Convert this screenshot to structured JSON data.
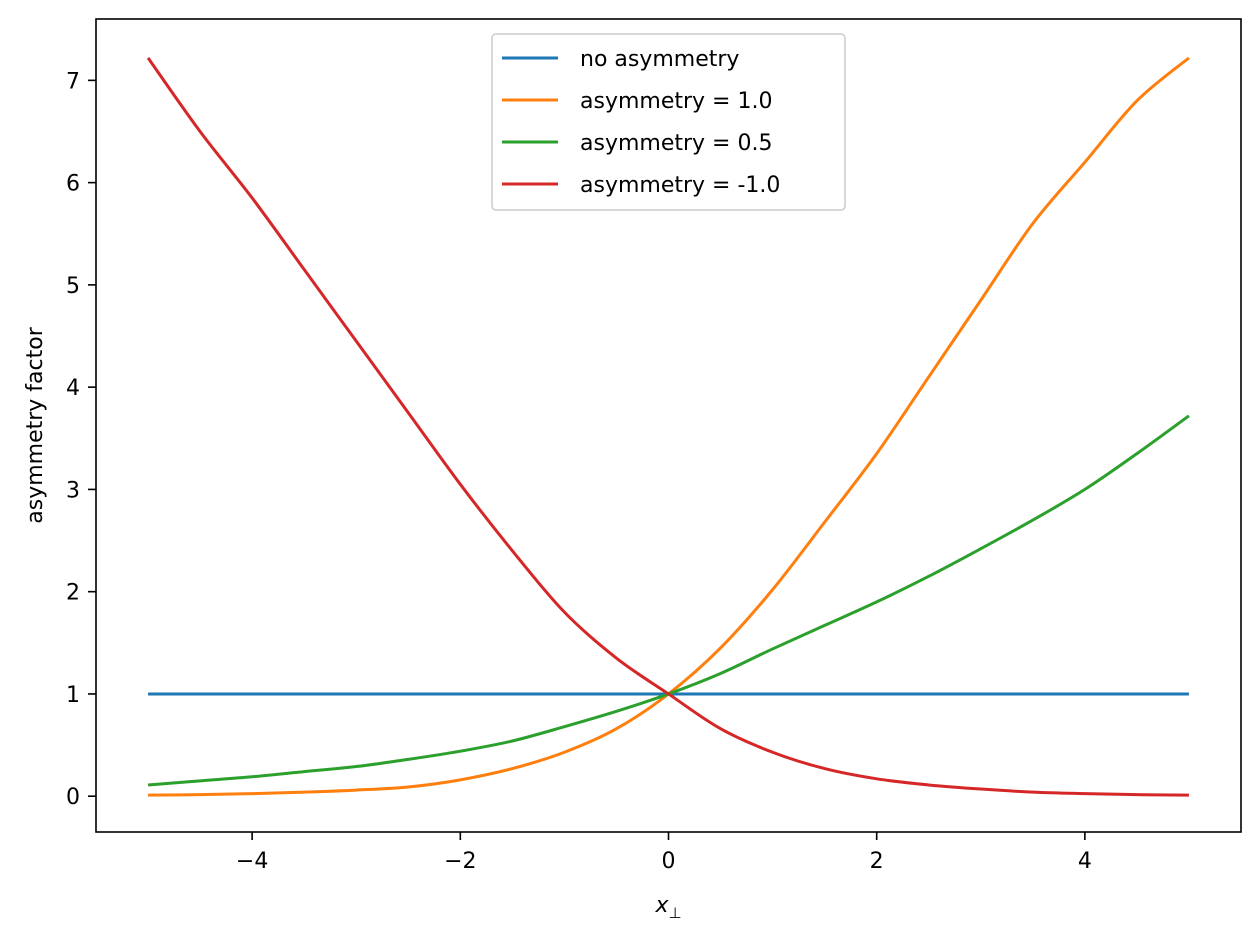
{
  "chart_data": {
    "type": "line",
    "title": "",
    "xlabel": "x",
    "xlabel_sub": "⊥",
    "ylabel": "asymmetry factor",
    "xlim": [
      -5.5,
      5.5
    ],
    "ylim": [
      -0.35,
      7.6
    ],
    "x_ticks": [
      -4,
      -2,
      0,
      2,
      4
    ],
    "x_tick_labels": [
      "−4",
      "−2",
      "0",
      "2",
      "4"
    ],
    "y_ticks": [
      0,
      1,
      2,
      3,
      4,
      5,
      6,
      7
    ],
    "y_tick_labels": [
      "0",
      "1",
      "2",
      "3",
      "4",
      "5",
      "6",
      "7"
    ],
    "grid": false,
    "legend_position": "top-center",
    "x": [
      -5,
      -4.5,
      -4,
      -3.5,
      -3,
      -2.5,
      -2,
      -1.5,
      -1,
      -0.5,
      0,
      0.5,
      1,
      1.5,
      2,
      2.5,
      3,
      3.5,
      4,
      4.5,
      5
    ],
    "series": [
      {
        "name": "no asymmetry",
        "color": "#1f77b4",
        "values": [
          1,
          1,
          1,
          1,
          1,
          1,
          1,
          1,
          1,
          1,
          1,
          1,
          1,
          1,
          1,
          1,
          1,
          1,
          1,
          1,
          1
        ]
      },
      {
        "name": "asymmetry = 1.0",
        "color": "#ff7f0e",
        "values": [
          0.01,
          0.015,
          0.025,
          0.04,
          0.06,
          0.09,
          0.16,
          0.27,
          0.43,
          0.66,
          1.0,
          1.45,
          2.02,
          2.68,
          3.35,
          4.1,
          4.85,
          5.6,
          6.2,
          6.8,
          7.22
        ]
      },
      {
        "name": "asymmetry = 0.5",
        "color": "#2ca02c",
        "values": [
          0.11,
          0.15,
          0.19,
          0.24,
          0.29,
          0.36,
          0.44,
          0.54,
          0.68,
          0.83,
          1.0,
          1.2,
          1.44,
          1.67,
          1.9,
          2.15,
          2.42,
          2.7,
          3.0,
          3.35,
          3.72
        ]
      },
      {
        "name": "asymmetry = -1.0",
        "color": "#d62728",
        "values": [
          7.22,
          6.5,
          5.85,
          5.15,
          4.45,
          3.75,
          3.05,
          2.4,
          1.8,
          1.35,
          1.0,
          0.66,
          0.43,
          0.27,
          0.17,
          0.11,
          0.07,
          0.04,
          0.025,
          0.015,
          0.01
        ]
      }
    ]
  }
}
